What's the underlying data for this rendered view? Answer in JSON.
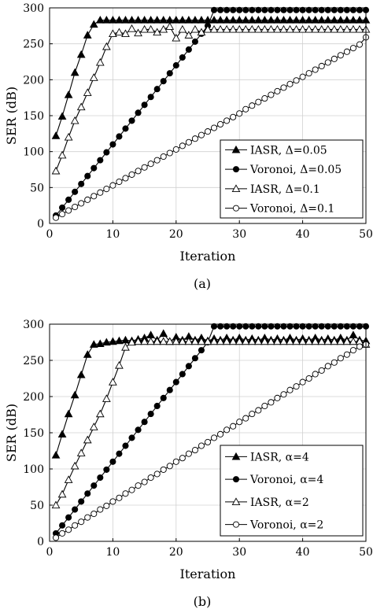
{
  "chart_data": [
    {
      "type": "line",
      "caption": "(a)",
      "xlabel": "Iteration",
      "ylabel": "SER (dB)",
      "xlim": [
        0,
        50
      ],
      "ylim": [
        0,
        300
      ],
      "xticks": [
        "0",
        "10",
        "20",
        "30",
        "40",
        "50"
      ],
      "yticks": [
        "0",
        "50",
        "100",
        "150",
        "200",
        "250",
        "300"
      ],
      "grid": true,
      "legend_position": "lower-right",
      "series": [
        {
          "name": "IASR, Δ=0.05",
          "marker": "filled-triangle",
          "y": [
            122,
            149,
            179,
            210,
            235,
            262,
            277,
            283,
            283,
            283,
            283,
            283,
            283,
            283,
            283,
            283,
            283,
            283,
            283,
            283,
            283,
            283,
            283,
            283,
            283,
            283,
            283,
            283,
            283,
            283,
            283,
            283,
            283,
            283,
            283,
            283,
            283,
            283,
            283,
            283,
            283,
            283,
            283,
            283,
            283,
            283,
            283,
            283,
            283,
            283
          ]
        },
        {
          "name": "Voronoi, Δ=0.05",
          "marker": "filled-circle",
          "y": [
            11,
            22,
            33,
            44,
            55,
            66,
            77,
            88,
            99,
            110,
            121,
            132,
            143,
            154,
            165,
            176,
            187,
            198,
            209,
            220,
            231,
            242,
            253,
            264,
            275,
            297,
            297,
            297,
            297,
            297,
            297,
            297,
            297,
            297,
            297,
            297,
            297,
            297,
            297,
            297,
            297,
            297,
            297,
            297,
            297,
            297,
            297,
            297,
            297,
            297
          ]
        },
        {
          "name": "IASR, Δ=0.1",
          "marker": "open-triangle",
          "y": [
            73,
            95,
            120,
            143,
            162,
            182,
            203,
            224,
            246,
            264,
            266,
            264,
            271,
            265,
            270,
            270,
            266,
            270,
            274,
            258,
            270,
            262,
            270,
            266,
            270,
            270,
            270,
            270,
            270,
            270,
            270,
            270,
            270,
            270,
            270,
            270,
            270,
            270,
            270,
            270,
            270,
            270,
            270,
            270,
            270,
            270,
            270,
            270,
            270,
            270
          ]
        },
        {
          "name": "Voronoi, Δ=0.1",
          "marker": "open-circle",
          "y": [
            8,
            13,
            18,
            23,
            28,
            33,
            38,
            43,
            48,
            53,
            58,
            63,
            68,
            73,
            78,
            83,
            88,
            93,
            98,
            103,
            108,
            113,
            118,
            123,
            128,
            133,
            138,
            143,
            148,
            153,
            159,
            164,
            169,
            174,
            179,
            184,
            189,
            194,
            199,
            204,
            209,
            214,
            219,
            224,
            229,
            234,
            239,
            244,
            249,
            259
          ]
        }
      ]
    },
    {
      "type": "line",
      "caption": "(b)",
      "xlabel": "Iteration",
      "ylabel": "SER (dB)",
      "xlim": [
        0,
        50
      ],
      "ylim": [
        0,
        300
      ],
      "xticks": [
        "0",
        "10",
        "20",
        "30",
        "40",
        "50"
      ],
      "yticks": [
        "0",
        "50",
        "100",
        "150",
        "200",
        "250",
        "300"
      ],
      "grid": true,
      "legend_position": "lower-right",
      "series": [
        {
          "name": "IASR, α=4",
          "marker": "filled-triangle",
          "y": [
            119,
            148,
            176,
            202,
            230,
            258,
            272,
            273,
            275,
            276,
            277,
            278,
            277,
            279,
            281,
            285,
            278,
            287,
            276,
            282,
            278,
            283,
            278,
            281,
            277,
            280,
            278,
            281,
            278,
            281,
            278,
            280,
            278,
            281,
            278,
            280,
            278,
            281,
            278,
            280,
            278,
            281,
            278,
            280,
            278,
            281,
            278,
            285,
            278,
            277
          ]
        },
        {
          "name": "Voronoi, α=4",
          "marker": "filled-circle",
          "y": [
            11,
            22,
            33,
            44,
            55,
            66,
            77,
            88,
            99,
            110,
            121,
            132,
            143,
            154,
            165,
            176,
            187,
            198,
            209,
            220,
            231,
            242,
            253,
            264,
            275,
            297,
            297,
            297,
            297,
            297,
            297,
            297,
            297,
            297,
            297,
            297,
            297,
            297,
            297,
            297,
            297,
            297,
            297,
            297,
            297,
            297,
            297,
            297,
            297,
            297
          ]
        },
        {
          "name": "IASR, α=2",
          "marker": "open-triangle",
          "y": [
            50,
            65,
            85,
            104,
            122,
            140,
            158,
            176,
            197,
            220,
            243,
            268,
            275,
            276,
            276,
            276,
            276,
            276,
            276,
            276,
            276,
            276,
            276,
            276,
            276,
            276,
            276,
            276,
            276,
            276,
            276,
            276,
            276,
            276,
            276,
            276,
            276,
            276,
            276,
            276,
            276,
            276,
            276,
            276,
            276,
            276,
            276,
            276,
            276,
            272
          ]
        },
        {
          "name": "Voronoi, α=2",
          "marker": "open-circle",
          "y": [
            5,
            11,
            16,
            22,
            27,
            33,
            38,
            44,
            49,
            55,
            60,
            66,
            71,
            77,
            82,
            88,
            93,
            99,
            104,
            110,
            115,
            121,
            126,
            132,
            137,
            143,
            148,
            154,
            159,
            165,
            170,
            176,
            181,
            187,
            192,
            198,
            203,
            209,
            214,
            220,
            225,
            231,
            236,
            242,
            247,
            253,
            258,
            264,
            269,
            272
          ]
        }
      ]
    }
  ]
}
